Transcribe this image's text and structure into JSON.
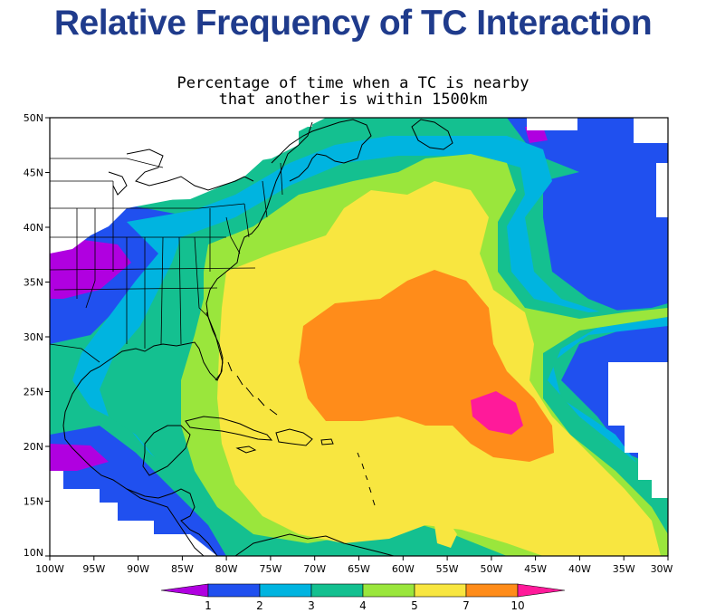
{
  "title": "Relative Frequency of TC Interaction",
  "subtitle_lines": [
    "Percentage of time when a TC is nearby",
    "that another is within 1500km"
  ],
  "map": {
    "lat_ticks": [
      "50N",
      "45N",
      "40N",
      "35N",
      "30N",
      "25N",
      "20N",
      "15N",
      "10N"
    ],
    "lon_ticks": [
      "100W",
      "95W",
      "90W",
      "85W",
      "80W",
      "75W",
      "70W",
      "65W",
      "60W",
      "55W",
      "50W",
      "45W",
      "40W",
      "35W",
      "30W"
    ],
    "lat_range": [
      10,
      50
    ],
    "lon_range": [
      -100,
      -30
    ]
  },
  "colorbar": {
    "labels": [
      "1",
      "2",
      "3",
      "4",
      "5",
      "7",
      "10"
    ],
    "colors": {
      "lt1": "#b000e0",
      "1-2": "#2050ef",
      "2-3": "#00b4e0",
      "3-4": "#14c090",
      "4-5": "#9ae63c",
      "5-7": "#f8e640",
      "7-10": "#ff8c1a",
      "gt10": "#ff1a9a"
    }
  }
}
